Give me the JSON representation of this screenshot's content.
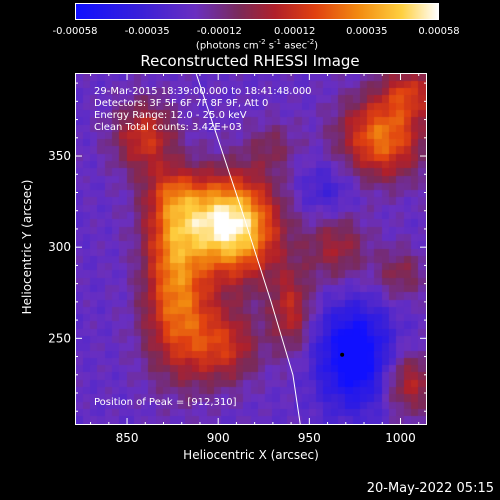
{
  "chart_data": {
    "type": "heatmap",
    "title": "Reconstructed RHESSI Image",
    "xlabel": "Heliocentric X (arcsec)",
    "ylabel": "Heliocentric Y (arcsec)",
    "xlim": [
      822,
      1014
    ],
    "ylim": [
      203,
      395
    ],
    "x_ticks": [
      850,
      900,
      950,
      1000
    ],
    "y_ticks": [
      250,
      300,
      350
    ],
    "colorbar": {
      "range": [
        -0.00058,
        0.00058
      ],
      "tick_labels": [
        "-0.00058",
        "-0.00035",
        "-0.00012",
        "0.00012",
        "0.00035",
        "0.00058"
      ],
      "units_main": "(photons cm",
      "units_exp1": "-2",
      "units_mid": " s",
      "units_exp2": "-1",
      "units_end": " asec",
      "units_exp3": "-2",
      "units_close": ")"
    },
    "info": {
      "time_range": "29-Mar-2015 18:39:00.000 to 18:41:48.000",
      "detectors": "Detectors: 3F 5F 6F 7F 8F 9F, Att 0",
      "energy_range": "Energy Range: 12.0 - 25.0 keV",
      "clean_total": "Clean     Total counts: 3.42E+03",
      "peak": "Position of Peak = [912,310]"
    },
    "peak_position": [
      912,
      310
    ],
    "emission_blobs": [
      {
        "x": 912,
        "y": 310,
        "amp": 0.0006,
        "sx": 16,
        "sy": 20
      },
      {
        "x": 890,
        "y": 315,
        "amp": 0.0004,
        "sx": 18,
        "sy": 16
      },
      {
        "x": 875,
        "y": 295,
        "amp": 0.0003,
        "sx": 10,
        "sy": 22
      },
      {
        "x": 880,
        "y": 260,
        "amp": 0.0004,
        "sx": 14,
        "sy": 24
      },
      {
        "x": 905,
        "y": 245,
        "amp": 0.0003,
        "sx": 13,
        "sy": 14
      },
      {
        "x": 860,
        "y": 360,
        "amp": 0.00035,
        "sx": 12,
        "sy": 14
      },
      {
        "x": 875,
        "y": 330,
        "amp": 0.0002,
        "sx": 10,
        "sy": 10
      },
      {
        "x": 990,
        "y": 360,
        "amp": 0.0005,
        "sx": 16,
        "sy": 16
      },
      {
        "x": 1005,
        "y": 385,
        "amp": 0.0003,
        "sx": 10,
        "sy": 10
      },
      {
        "x": 940,
        "y": 265,
        "amp": 0.0003,
        "sx": 8,
        "sy": 16
      },
      {
        "x": 965,
        "y": 300,
        "amp": 0.00025,
        "sx": 12,
        "sy": 14
      },
      {
        "x": 1005,
        "y": 225,
        "amp": 0.0003,
        "sx": 10,
        "sy": 12
      },
      {
        "x": 1000,
        "y": 285,
        "amp": 0.0002,
        "sx": 10,
        "sy": 10
      },
      {
        "x": 930,
        "y": 355,
        "amp": 0.00015,
        "sx": 10,
        "sy": 10
      },
      {
        "x": 975,
        "y": 240,
        "amp": -0.00045,
        "sx": 14,
        "sy": 20
      },
      {
        "x": 960,
        "y": 330,
        "amp": -0.00015,
        "sx": 12,
        "sy": 12
      }
    ],
    "limb_curve": [
      [
        888,
        395
      ],
      [
        913,
        320
      ],
      [
        929,
        270
      ],
      [
        941,
        230
      ],
      [
        945,
        203
      ]
    ],
    "min_marker": [
      968,
      241
    ]
  },
  "timestamp": "20-May-2022 05:15"
}
